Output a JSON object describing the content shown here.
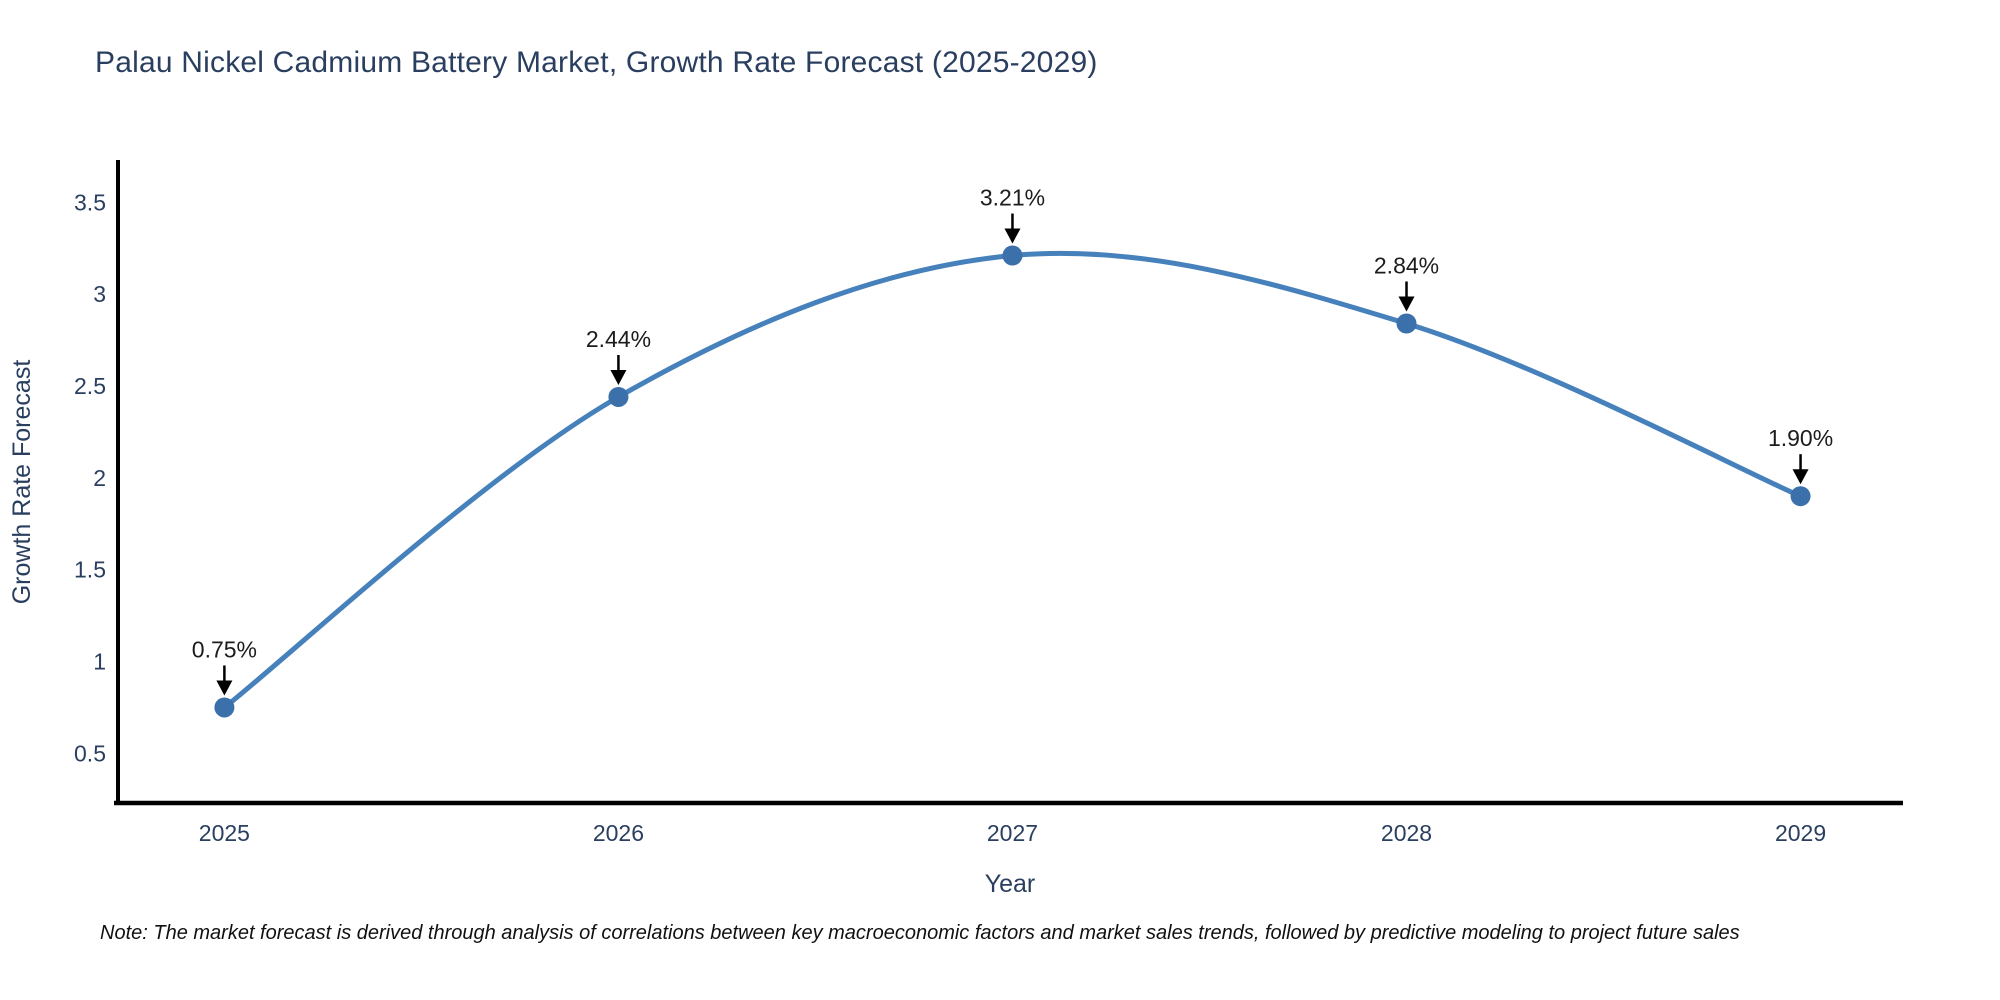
{
  "title": "Palau Nickel Cadmium Battery Market, Growth Rate Forecast (2025-2029)",
  "note": "Note: The market forecast is derived through analysis of correlations between key macroeconomic factors and market sales trends, followed by predictive modeling to project future sales",
  "chart_data": {
    "type": "line",
    "title": "Palau Nickel Cadmium Battery Market, Growth Rate Forecast (2025-2029)",
    "xlabel": "Year",
    "ylabel": "Growth Rate Forecast",
    "x": [
      2025,
      2026,
      2027,
      2028,
      2029
    ],
    "values": [
      0.75,
      2.44,
      3.21,
      2.84,
      1.9
    ],
    "point_labels": [
      "0.75%",
      "2.44%",
      "3.21%",
      "2.84%",
      "1.90%"
    ],
    "xticks": [
      2025,
      2026,
      2027,
      2028,
      2029
    ],
    "yticks": [
      0.5,
      1,
      1.5,
      2,
      2.5,
      3,
      3.5
    ],
    "xlim": [
      2024.73,
      2029.26
    ],
    "ylim": [
      0.23,
      3.73
    ],
    "line_shape": "spline",
    "grid": false,
    "legend": false,
    "marker_style": "circle",
    "annotation_style": "down-arrow",
    "colors": {
      "line": "#4681bc",
      "marker": "#3b70ab",
      "axis_text": "#2a3f5f",
      "annotation_text": "#1c1c1c",
      "arrow": "#000000",
      "spine": "#000000",
      "background": "#ffffff"
    }
  }
}
